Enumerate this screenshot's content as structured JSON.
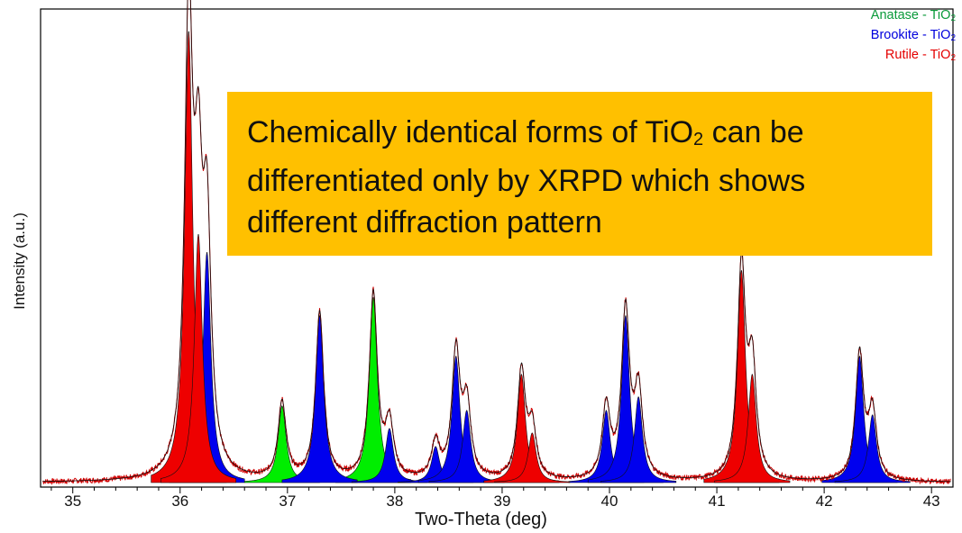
{
  "chart_data": {
    "type": "area",
    "title": "",
    "xlabel": "Two-Theta (deg)",
    "ylabel": "Intensity (a.u.)",
    "xlim": [
      34.7,
      43.2
    ],
    "ylim": [
      0,
      1
    ],
    "x_ticks": [
      "35",
      "36",
      "37",
      "38",
      "39",
      "40",
      "41",
      "42",
      "43"
    ],
    "legend": {
      "placement": "top-right",
      "entries": [
        {
          "label": "Anatase - TiO",
          "sub": "2",
          "color": "#0a9a3a"
        },
        {
          "label": "Brookite - TiO",
          "sub": "2",
          "color": "#0000dd"
        },
        {
          "label": "Rutile - TiO",
          "sub": "2",
          "color": "#e40000"
        }
      ]
    },
    "annotation": {
      "pre": "Chemically identical forms of TiO",
      "sub": "2",
      "post": " can be differentiated only by XRPD which shows different diffraction pattern",
      "color": "#ffc000"
    },
    "series": [
      {
        "name": "Anatase - TiO2",
        "color": "#00ee00",
        "peaks": [
          {
            "x": 36.95,
            "h": 0.17
          },
          {
            "x": 37.8,
            "h": 0.41
          }
        ]
      },
      {
        "name": "Brookite - TiO2",
        "color": "#0000ee",
        "peaks": [
          {
            "x": 36.25,
            "h": 0.51
          },
          {
            "x": 37.3,
            "h": 0.37
          },
          {
            "x": 37.95,
            "h": 0.12
          },
          {
            "x": 38.38,
            "h": 0.08
          },
          {
            "x": 38.57,
            "h": 0.28
          },
          {
            "x": 38.67,
            "h": 0.16
          },
          {
            "x": 39.97,
            "h": 0.16
          },
          {
            "x": 40.15,
            "h": 0.37
          },
          {
            "x": 40.27,
            "h": 0.19
          },
          {
            "x": 42.33,
            "h": 0.28
          },
          {
            "x": 42.45,
            "h": 0.15
          }
        ]
      },
      {
        "name": "Rutile - TiO2",
        "color": "#ee0000",
        "peaks": [
          {
            "x": 36.08,
            "h": 1.0
          },
          {
            "x": 36.17,
            "h": 0.55
          },
          {
            "x": 39.18,
            "h": 0.24
          },
          {
            "x": 39.28,
            "h": 0.11
          },
          {
            "x": 41.23,
            "h": 0.47
          },
          {
            "x": 41.33,
            "h": 0.24
          }
        ]
      }
    ]
  }
}
